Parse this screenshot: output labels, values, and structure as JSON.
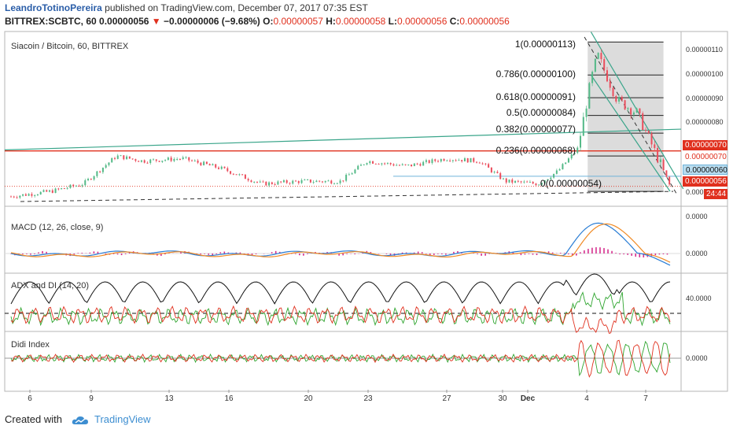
{
  "header": {
    "user": "LeandroTotinoPereira",
    "published": "published on TradingView.com, December 07, 2017 07:35 EST"
  },
  "quote": {
    "symbol": "BITTREX:SCBTC, 60",
    "last": "0.00000056",
    "change_arrow": "▼",
    "change": "−0.00000006 (−9.68%)",
    "o_label": "O:",
    "o": "0.00000057",
    "h_label": "H:",
    "h": "0.00000058",
    "l_label": "L:",
    "l": "0.00000056",
    "c_label": "C:",
    "c": "0.00000056"
  },
  "panels": {
    "price_title": "Siacoin / Bitcoin, 60, BITTREX",
    "macd_title": "MACD (12, 26, close, 9)",
    "adx_title": "ADX and DI (14, 20)",
    "didi_title": "Didi Index"
  },
  "fib_levels": [
    {
      "label": "1(0.00000113)"
    },
    {
      "label": "0.786(0.00000100)"
    },
    {
      "label": "0.618(0.00000091)"
    },
    {
      "label": "0.5(0.00000084)"
    },
    {
      "label": "0.382(0.00000077)"
    },
    {
      "label": "0.236(0.00000068)"
    },
    {
      "label": "0(0.00000054)"
    }
  ],
  "price_axis": {
    "ticks": [
      "0.00000110",
      "0.00000100",
      "0.00000090",
      "0.00000080",
      "0.000"
    ],
    "badges": [
      {
        "text": "0.00000070",
        "kind": "red"
      },
      {
        "text": "0.00000070",
        "kind": "redtext"
      },
      {
        "text": "0.00000060",
        "kind": "blue"
      },
      {
        "text": "0.00000056",
        "kind": "red"
      },
      {
        "text": "24:44",
        "kind": "red"
      }
    ]
  },
  "indicator_axis": {
    "macd_ticks": [
      "0.0000",
      "0.0000"
    ],
    "adx_ticks": [
      "40.0000"
    ],
    "didi_ticks": [
      "0.0000"
    ]
  },
  "x_axis": [
    {
      "label": "6",
      "bold": false
    },
    {
      "label": "9",
      "bold": false
    },
    {
      "label": "13",
      "bold": false
    },
    {
      "label": "16",
      "bold": false
    },
    {
      "label": "20",
      "bold": false
    },
    {
      "label": "23",
      "bold": false
    },
    {
      "label": "27",
      "bold": false
    },
    {
      "label": "30",
      "bold": false
    },
    {
      "label": "Dec",
      "bold": true
    },
    {
      "label": "4",
      "bold": false
    },
    {
      "label": "7",
      "bold": false
    }
  ],
  "footer": {
    "created": "Created with",
    "brand": "TradingView"
  },
  "colors": {
    "up": "#53b987",
    "down": "#eb4d5c",
    "resistance": "#e0301e",
    "trend": "#3aa58a",
    "macd": "#2a7dd4",
    "signal": "#f08a24",
    "adx": "#111111",
    "di_plus": "#2fa52f",
    "di_minus": "#e0301e"
  },
  "chart_data": {
    "type": "candlestick",
    "symbol": "SC/BTC",
    "interval": "60",
    "ohlc_last": {
      "open": 5.7e-07,
      "high": 5.8e-07,
      "low": 5.6e-07,
      "close": 5.6e-07
    },
    "fibonacci": [
      {
        "ratio": 1,
        "price": 1.13e-06
      },
      {
        "ratio": 0.786,
        "price": 1e-06
      },
      {
        "ratio": 0.618,
        "price": 9.1e-07
      },
      {
        "ratio": 0.5,
        "price": 8.4e-07
      },
      {
        "ratio": 0.382,
        "price": 7.7e-07
      },
      {
        "ratio": 0.236,
        "price": 6.8e-07
      },
      {
        "ratio": 0,
        "price": 5.4e-07
      }
    ],
    "horizontal_levels": [
      7e-07,
      6e-07,
      5.6e-07
    ],
    "ylim": [
      5e-07,
      1.15e-06
    ],
    "close_path": [
      {
        "t": 0,
        "p": 5.2e-07
      },
      {
        "t": 6,
        "p": 5.4e-07
      },
      {
        "t": 11,
        "p": 5.7e-07
      },
      {
        "t": 16,
        "p": 6.8e-07
      },
      {
        "t": 20,
        "p": 6.6e-07
      },
      {
        "t": 26,
        "p": 6.7e-07
      },
      {
        "t": 32,
        "p": 6.3e-07
      },
      {
        "t": 38,
        "p": 5.7e-07
      },
      {
        "t": 44,
        "p": 5.8e-07
      },
      {
        "t": 50,
        "p": 5.8e-07
      },
      {
        "t": 54,
        "p": 6.6e-07
      },
      {
        "t": 60,
        "p": 6.4e-07
      },
      {
        "t": 66,
        "p": 6.7e-07
      },
      {
        "t": 71,
        "p": 6.6e-07
      },
      {
        "t": 75,
        "p": 5.8e-07
      },
      {
        "t": 80,
        "p": 5.7e-07
      },
      {
        "t": 83,
        "p": 6.2e-07
      },
      {
        "t": 86,
        "p": 7.1e-07
      },
      {
        "t": 88,
        "p": 9.8e-07
      },
      {
        "t": 89,
        "p": 1.08e-06
      },
      {
        "t": 92,
        "p": 9e-07
      },
      {
        "t": 95,
        "p": 8.5e-07
      },
      {
        "t": 98,
        "p": 6.8e-07
      },
      {
        "t": 100,
        "p": 5.6e-07
      }
    ]
  }
}
